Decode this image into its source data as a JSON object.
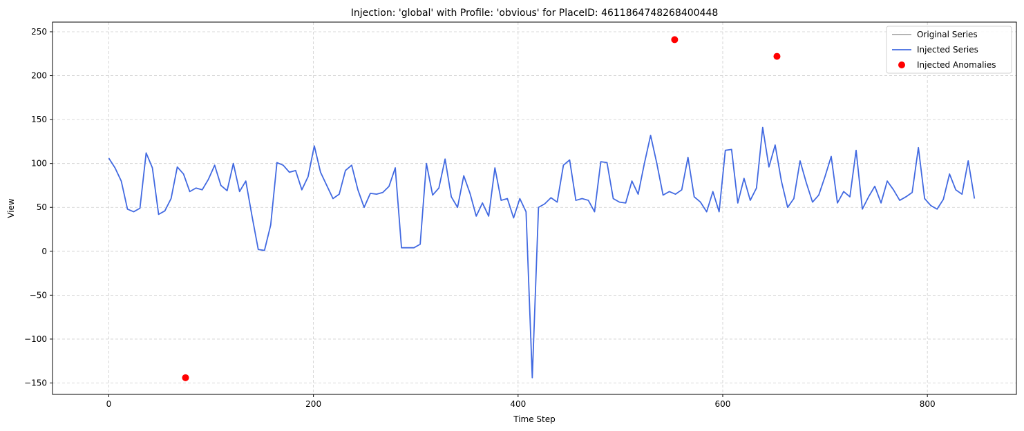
{
  "chart_data": {
    "type": "line",
    "title": "Injection: 'global' with Profile: 'obvious' for PlaceID: 4611864748268400448",
    "xlabel": "Time Step",
    "ylabel": "View",
    "xlim": [
      -55,
      887
    ],
    "ylim": [
      -163,
      261
    ],
    "xticks": [
      0,
      200,
      400,
      600,
      800
    ],
    "yticks": [
      -150,
      -100,
      -50,
      0,
      50,
      100,
      150,
      200,
      250
    ],
    "grid": true,
    "legend_position": "top-right",
    "series": [
      {
        "name": "Original Series",
        "color": "#aaaaaa",
        "values": []
      },
      {
        "name": "Injected Series",
        "color": "#4169e1",
        "values": [
          106,
          95,
          80,
          48,
          45,
          49,
          112,
          95,
          42,
          46,
          60,
          96,
          88,
          68,
          72,
          70,
          82,
          98,
          75,
          69,
          100,
          68,
          80,
          40,
          2,
          1,
          30,
          101,
          98,
          90,
          92,
          70,
          85,
          120,
          90,
          75,
          60,
          65,
          92,
          98,
          70,
          50,
          66,
          65,
          67,
          74,
          95,
          4,
          4,
          4,
          8,
          100,
          64,
          72,
          105,
          62,
          50,
          86,
          66,
          40,
          55,
          40,
          95,
          58,
          60,
          38,
          60,
          45,
          -144,
          50,
          54,
          61,
          56,
          98,
          104,
          58,
          60,
          58,
          45,
          102,
          101,
          60,
          56,
          55,
          80,
          65,
          100,
          132,
          100,
          64,
          68,
          65,
          70,
          107,
          62,
          56,
          45,
          68,
          45,
          115,
          116,
          55,
          83,
          58,
          72,
          141,
          96,
          121,
          80,
          50,
          60,
          103,
          78,
          56,
          64,
          85,
          108,
          55,
          68,
          62,
          115,
          48,
          62,
          74,
          55,
          80,
          70,
          58,
          62,
          67,
          118,
          60,
          52,
          48,
          59,
          88,
          70,
          65,
          103,
          60
        ]
      },
      {
        "name": "Injected Anomalies",
        "color": "#ff0000",
        "points": [
          {
            "x": 75,
            "y": -144
          },
          {
            "x": 553,
            "y": 241
          },
          {
            "x": 653,
            "y": 222
          }
        ]
      }
    ]
  }
}
